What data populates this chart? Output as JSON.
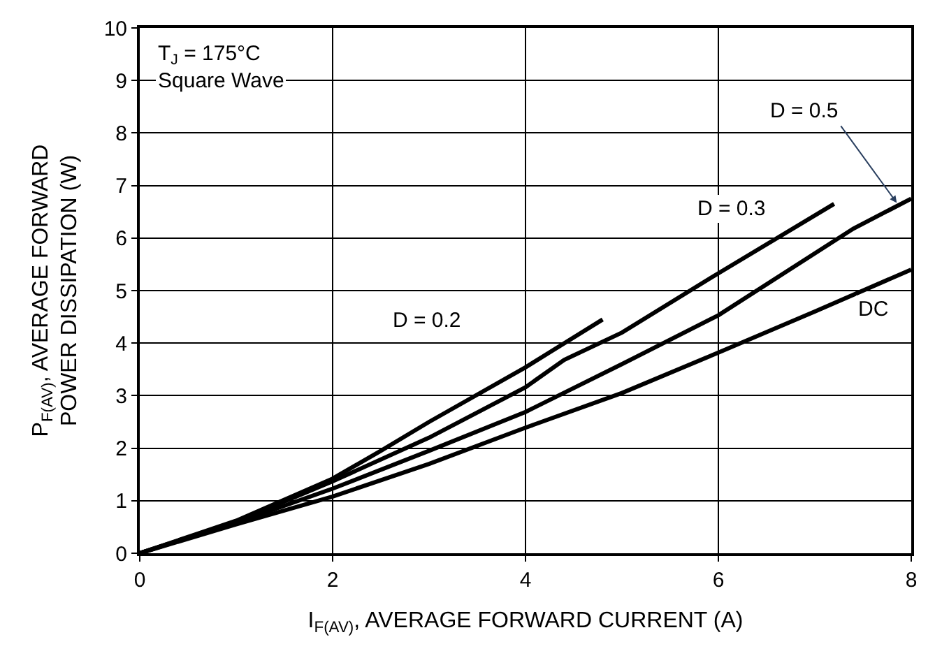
{
  "chart_data": {
    "type": "line",
    "xlabel": "I$_{F(AV)}$, AVERAGE FORWARD CURRENT (A)",
    "ylabel": "P$_{F(AV)}$, AVERAGE FORWARD\nPOWER DISSIPATION (W)",
    "xlim": [
      0,
      8
    ],
    "xticks": [
      0,
      2,
      4,
      6,
      8
    ],
    "ylim": [
      0,
      10
    ],
    "yticks": [
      0,
      1,
      2,
      3,
      4,
      5,
      6,
      7,
      8,
      9,
      10
    ],
    "grid": true,
    "legend": false,
    "marker": "none",
    "line_style": "solid",
    "annotations": [
      "T$_{J}$ = 175°C\nSquare Wave"
    ],
    "series": [
      {
        "name": "D = 0.2",
        "color": "#000000",
        "x": [
          0,
          1,
          2,
          2.5,
          3,
          4,
          4.8
        ],
        "values": [
          0,
          0.62,
          1.42,
          1.95,
          2.5,
          3.54,
          4.45
        ]
      },
      {
        "name": "D = 0.3",
        "color": "#000000",
        "x": [
          0,
          1,
          2,
          3,
          4,
          4.4,
          5,
          6,
          7.2
        ],
        "values": [
          0,
          0.6,
          1.37,
          2.2,
          3.16,
          3.68,
          4.2,
          5.33,
          6.65
        ]
      },
      {
        "name": "D = 0.5",
        "color": "#000000",
        "x": [
          0,
          1,
          2,
          3,
          4,
          5,
          6,
          7.4,
          8
        ],
        "values": [
          0,
          0.58,
          1.23,
          1.95,
          2.69,
          3.6,
          4.53,
          6.18,
          6.75
        ]
      },
      {
        "name": "DC",
        "color": "#000000",
        "x": [
          0,
          1,
          2,
          3,
          4,
          5,
          6,
          7,
          8
        ],
        "values": [
          0,
          0.55,
          1.08,
          1.7,
          2.39,
          3.05,
          3.82,
          4.6,
          5.4
        ]
      }
    ]
  }
}
